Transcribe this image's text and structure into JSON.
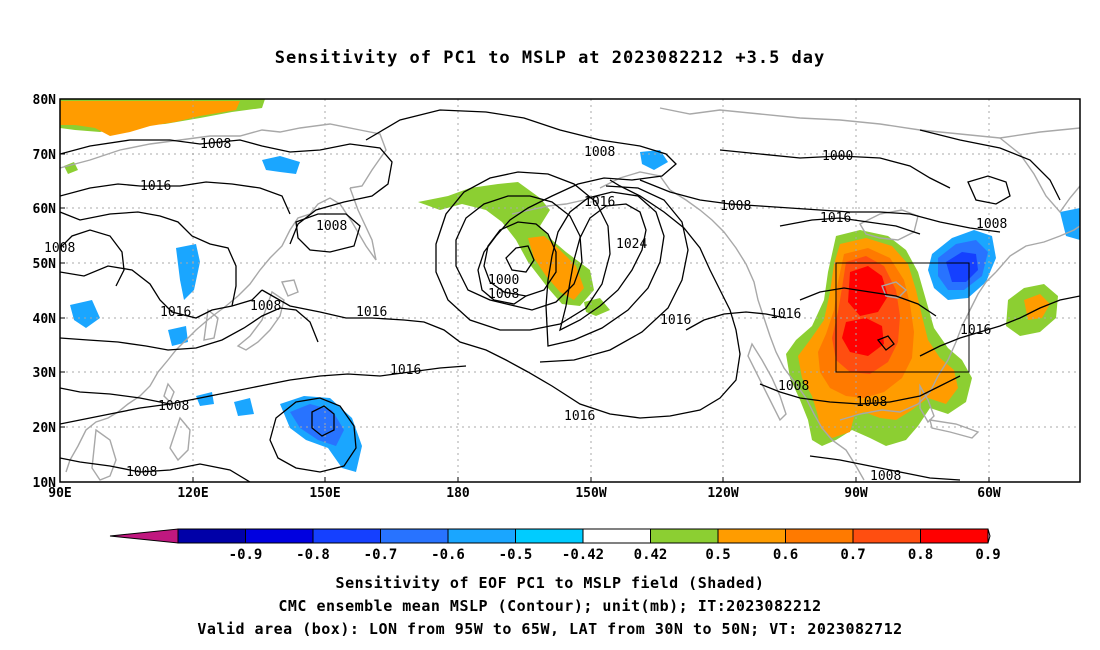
{
  "title": "Sensitivity of PC1 to MSLP at 2023082212 +3.5 day",
  "lat_labels": [
    "80N",
    "70N",
    "60N",
    "50N",
    "40N",
    "30N",
    "20N",
    "10N"
  ],
  "lon_labels": [
    "90E",
    "120E",
    "150E",
    "180",
    "150W",
    "120W",
    "90W",
    "60W"
  ],
  "colorbar": {
    "labels": [
      "-0.9",
      "-0.8",
      "-0.7",
      "-0.6",
      "-0.5",
      "-0.42",
      "0.42",
      "0.5",
      "0.6",
      "0.7",
      "0.8",
      "0.9"
    ],
    "colors": {
      "low_end": "#c0187f",
      "bins": [
        "#0000a8",
        "#0000e0",
        "#1540ff",
        "#2873ff",
        "#1aa6ff",
        "#00ccff",
        "#ffffff",
        "#8ccf32",
        "#ff9c00",
        "#ff7a00",
        "#ff4e10",
        "#ff0000"
      ],
      "high_end": "#f5a0c8"
    }
  },
  "contour_labels": {
    "1008_w": "1008",
    "1016_a": "1016",
    "1008_b": "1008",
    "1008_c": "1008",
    "1016_b": "1016",
    "1008_d": "1008",
    "1016_c": "1016",
    "1008_e": "1008",
    "1008_f": "1008",
    "1016_d": "1016",
    "1016_e": "1016",
    "1016_f": "1016",
    "1008_g": "1008",
    "1008_h": "1008",
    "1000_a": "1000",
    "1016_g": "1016",
    "1024": "1024",
    "1000_b": "1000",
    "1008_i": "1008",
    "1016_h": "1016",
    "1008_j": "1008",
    "1016_i": "1016",
    "1016_j": "1016",
    "1008_k": "1008",
    "1016_k": "1016",
    "1008_l": "1008",
    "1008_m": "1008",
    "1008_n": "1008"
  },
  "captions": {
    "line1": "Sensitivity of EOF PC1 to MSLP field (Shaded)",
    "line2": "CMC ensemble mean MSLP (Contour); unit(mb); IT:2023082212",
    "line3": "Valid area (box): LON from 95W to 65W, LAT from 30N to 50N; VT: 2023082712"
  }
}
